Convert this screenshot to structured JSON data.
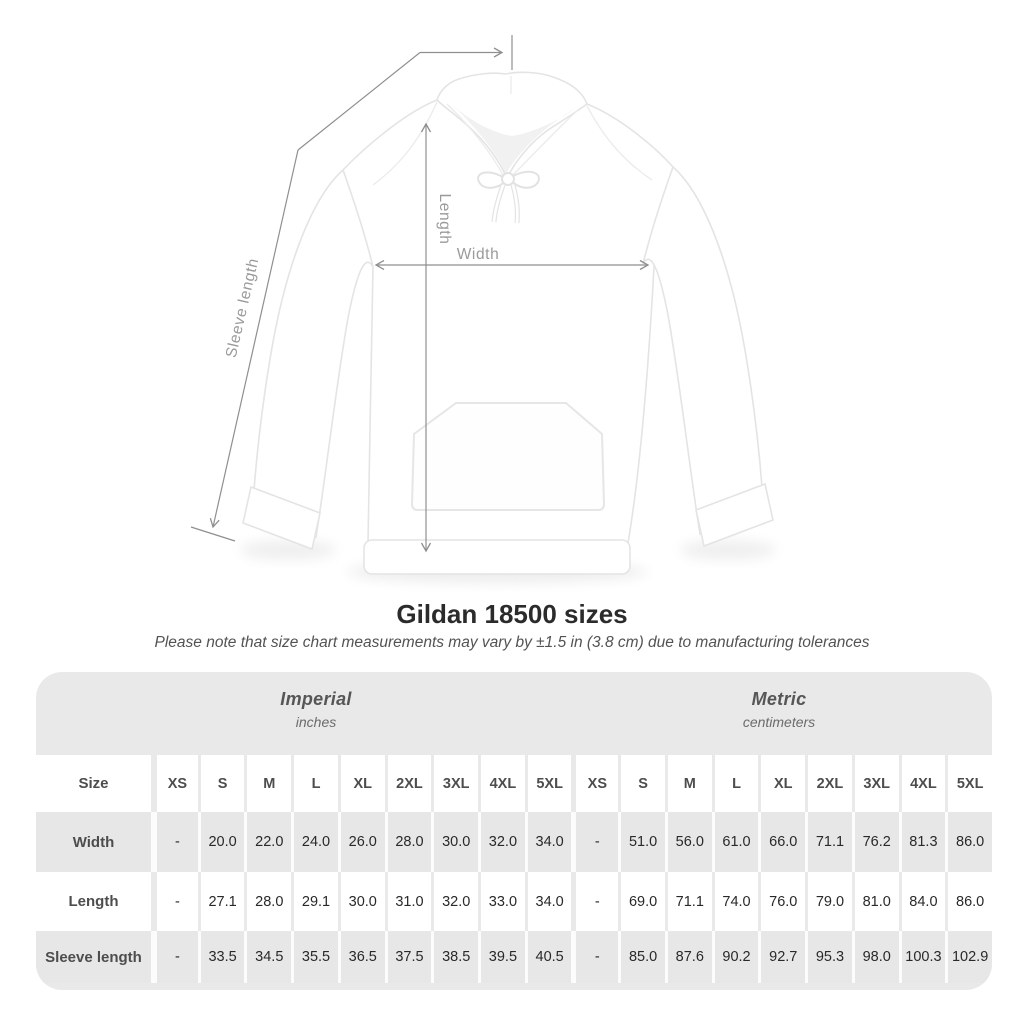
{
  "title": "Gildan 18500 sizes",
  "subtitle": "Please note that size chart measurements may vary by ±1.5 in (3.8 cm) due to manufacturing tolerances",
  "figure": {
    "labels": {
      "sleeve_length": "Sleeve length",
      "length": "Length",
      "width": "Width"
    },
    "line_color": "#8f8f8f",
    "label_color": "#9a9a9a"
  },
  "colors": {
    "table_container_bg": "#e9e9e9",
    "row_alt_bg": "#e7e7e7",
    "row_bg": "#ffffff",
    "header_text": "#4d4d4d",
    "value_text": "#292929"
  },
  "chart_data": {
    "type": "table",
    "title": "Gildan 18500 sizes",
    "size_header": "Size",
    "sizes": [
      "XS",
      "S",
      "M",
      "L",
      "XL",
      "2XL",
      "3XL",
      "4XL",
      "5XL"
    ],
    "sections": [
      {
        "label": "Imperial",
        "unit": "inches"
      },
      {
        "label": "Metric",
        "unit": "centimeters"
      }
    ],
    "rows": [
      {
        "label": "Width",
        "imperial": [
          "-",
          "20.0",
          "22.0",
          "24.0",
          "26.0",
          "28.0",
          "30.0",
          "32.0",
          "34.0"
        ],
        "metric": [
          "-",
          "51.0",
          "56.0",
          "61.0",
          "66.0",
          "71.1",
          "76.2",
          "81.3",
          "86.0"
        ]
      },
      {
        "label": "Length",
        "imperial": [
          "-",
          "27.1",
          "28.0",
          "29.1",
          "30.0",
          "31.0",
          "32.0",
          "33.0",
          "34.0"
        ],
        "metric": [
          "-",
          "69.0",
          "71.1",
          "74.0",
          "76.0",
          "79.0",
          "81.0",
          "84.0",
          "86.0"
        ]
      },
      {
        "label": "Sleeve length",
        "imperial": [
          "-",
          "33.5",
          "34.5",
          "35.5",
          "36.5",
          "37.5",
          "38.5",
          "39.5",
          "40.5"
        ],
        "metric": [
          "-",
          "85.0",
          "87.6",
          "90.2",
          "92.7",
          "95.3",
          "98.0",
          "100.3",
          "102.9"
        ]
      }
    ]
  }
}
